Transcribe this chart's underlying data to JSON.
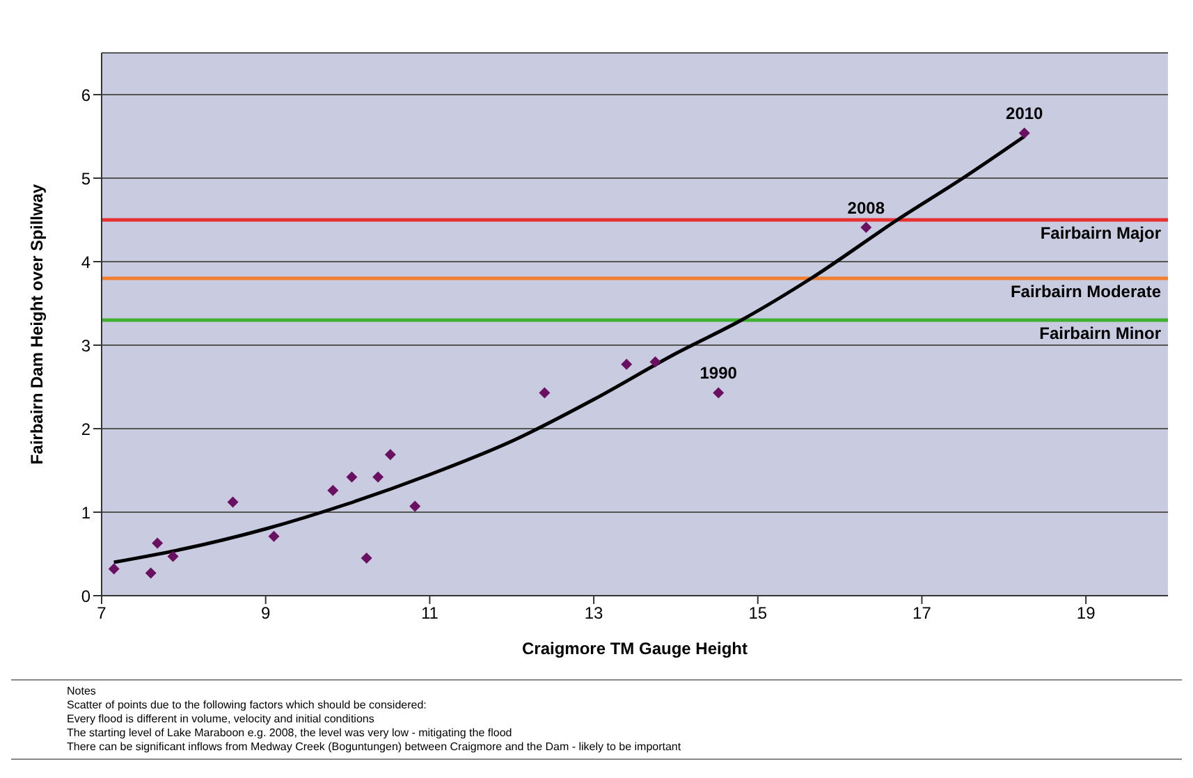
{
  "chart_data": {
    "type": "scatter",
    "xlabel": "Craigmore TM Gauge Height",
    "ylabel": "Fairbairn Dam Height over Spillway",
    "series": [
      {
        "color": "#6a1060",
        "marker": "diamond",
        "x": [
          7.15,
          7.6,
          7.68,
          7.87,
          8.6,
          9.1,
          9.82,
          10.05,
          10.23,
          10.37,
          10.52,
          10.82,
          12.4,
          13.4,
          13.75,
          14.52,
          16.32,
          18.25
        ],
        "values": [
          0.32,
          0.27,
          0.63,
          0.47,
          1.12,
          0.71,
          1.26,
          1.42,
          0.45,
          1.42,
          1.69,
          1.07,
          2.43,
          2.77,
          2.8,
          2.43,
          4.41,
          5.54
        ]
      },
      {
        "type": "line",
        "color": "#000000",
        "marker": "none",
        "line_style": "solid",
        "x": [
          7.15,
          8,
          9,
          10,
          11,
          12,
          13,
          14,
          14.8,
          15.65,
          16.7,
          17.5,
          18.25
        ],
        "values": [
          0.4,
          0.56,
          0.8,
          1.1,
          1.45,
          1.85,
          2.35,
          2.9,
          3.3,
          3.8,
          4.5,
          5.0,
          5.5
        ]
      }
    ],
    "xlim": [
      7,
      20
    ],
    "xticks": [
      7,
      9,
      11,
      13,
      15,
      17,
      19
    ],
    "ylim": [
      0,
      6.5
    ],
    "yticks": [
      0,
      1,
      2,
      3,
      4,
      5,
      6
    ],
    "grid": "y",
    "legend": false,
    "ref_lines": [
      {
        "axis": "y",
        "value": 4.5,
        "label": "Fairbairn Major",
        "color": "#e83030"
      },
      {
        "axis": "y",
        "value": 3.8,
        "label": "Fairbairn Moderate",
        "color": "#f08030"
      },
      {
        "axis": "y",
        "value": 3.3,
        "label": "Fairbairn Minor",
        "color": "#40b030"
      }
    ],
    "annotations": [
      {
        "text": "2010",
        "x": 18.25,
        "y": 5.54
      },
      {
        "text": "2008",
        "x": 16.32,
        "y": 4.41
      },
      {
        "text": "1990",
        "x": 14.52,
        "y": 2.43
      },
      "Notes",
      "Scatter of points due to the following factors which should be considered:",
      "Every flood is different in volume, velocity and initial conditions",
      "The starting level of Lake Maraboon e.g. 2008, the level was very low - mitigating the flood",
      "There can be significant inflows from Medway Creek (Boguntungen) between Craigmore and the Dam - likely to be important"
    ]
  }
}
